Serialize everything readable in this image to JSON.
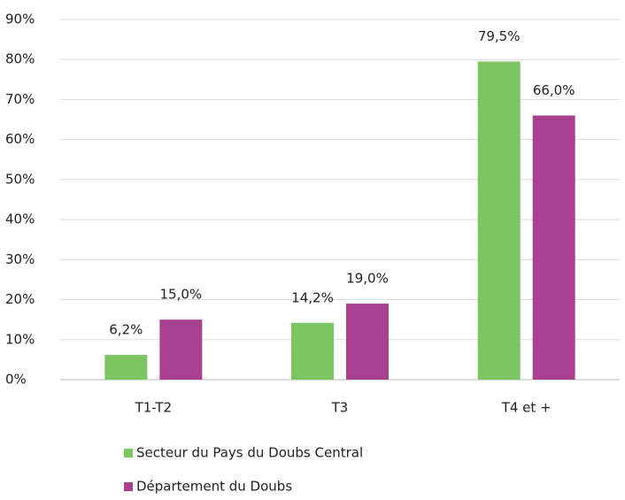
{
  "chart_data": {
    "type": "bar",
    "categories": [
      "T1-T2",
      "T3",
      "T4 et +"
    ],
    "series": [
      {
        "name": "Secteur du Pays du Doubs Central",
        "color": "#7dc462",
        "values": [
          6.2,
          14.2,
          79.5
        ],
        "value_labels": [
          "6,2%",
          "14,2%",
          "79,5%"
        ]
      },
      {
        "name": "Département du Doubs",
        "color": "#a8418f",
        "values": [
          15.0,
          19.0,
          66.0
        ],
        "value_labels": [
          "15,0%",
          "19,0%",
          "66,0%"
        ]
      }
    ],
    "ylim": [
      0,
      90
    ],
    "yticks": [
      {
        "value": 0,
        "label": "0%"
      },
      {
        "value": 10,
        "label": "10%"
      },
      {
        "value": 20,
        "label": "20%"
      },
      {
        "value": 30,
        "label": "30%"
      },
      {
        "value": 40,
        "label": "40%"
      },
      {
        "value": 50,
        "label": "50%"
      },
      {
        "value": 60,
        "label": "60%"
      },
      {
        "value": 70,
        "label": "70%"
      },
      {
        "value": 80,
        "label": "80%"
      },
      {
        "value": 90,
        "label": "90%"
      }
    ],
    "grid": true,
    "legend": "bottom"
  }
}
